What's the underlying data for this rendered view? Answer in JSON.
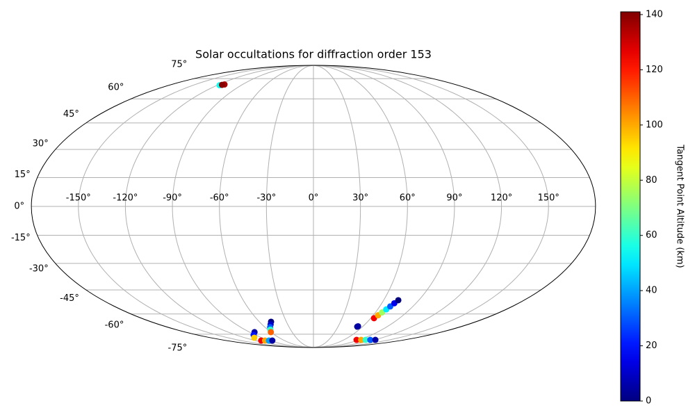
{
  "chart_data": {
    "type": "scatter",
    "projection": "mollweide",
    "title": "Solar occultations for diffraction order 153",
    "xlim": [
      -180,
      180
    ],
    "ylim": [
      -90,
      90
    ],
    "xticks": [
      {
        "value": -150,
        "label": "-150°"
      },
      {
        "value": -120,
        "label": "-120°"
      },
      {
        "value": -90,
        "label": "-90°"
      },
      {
        "value": -60,
        "label": "-60°"
      },
      {
        "value": -30,
        "label": "-30°"
      },
      {
        "value": 0,
        "label": "0°"
      },
      {
        "value": 30,
        "label": "30°"
      },
      {
        "value": 60,
        "label": "60°"
      },
      {
        "value": 90,
        "label": "90°"
      },
      {
        "value": 120,
        "label": "120°"
      },
      {
        "value": 150,
        "label": "150°"
      }
    ],
    "yticks": [
      {
        "value": -75,
        "label": "-75°"
      },
      {
        "value": -60,
        "label": "-60°"
      },
      {
        "value": -45,
        "label": "-45°"
      },
      {
        "value": -30,
        "label": "-30°"
      },
      {
        "value": -15,
        "label": "-15°"
      },
      {
        "value": 0,
        "label": "0°"
      },
      {
        "value": 15,
        "label": "15°"
      },
      {
        "value": 30,
        "label": "30°"
      },
      {
        "value": 45,
        "label": "45°"
      },
      {
        "value": 60,
        "label": "60°"
      },
      {
        "value": 75,
        "label": "75°"
      }
    ],
    "grid": true,
    "x": [
      -117,
      -113,
      -115,
      -47,
      -50,
      -53.5,
      -56.5,
      -60,
      -83,
      -93,
      -103.5,
      -108,
      -100,
      -92,
      -85,
      85,
      94,
      103,
      112,
      122,
      53.5,
      54,
      63.4,
      64.9,
      66.4,
      68,
      69.5,
      71,
      72.5
    ],
    "y": [
      69.7,
      70.3,
      70,
      -65.4,
      -67.4,
      -69.4,
      -71.3,
      -73.3,
      -73.3,
      -75.7,
      -78.1,
      -80.8,
      -80.8,
      -80.8,
      -80.8,
      -80.1,
      -80.1,
      -80.1,
      -80.1,
      -80.1,
      -69,
      -68.7,
      -62.9,
      -60.9,
      -59,
      -57,
      -55.1,
      -53.1,
      -51.2
    ],
    "color_values": [
      55,
      135,
      140,
      0,
      10,
      30,
      60,
      110,
      5,
      20,
      95,
      125,
      100,
      40,
      5,
      125,
      100,
      60,
      30,
      5,
      0,
      5,
      125,
      100,
      75,
      50,
      30,
      15,
      0
    ],
    "colormap": "jet",
    "clim": [
      0,
      141
    ],
    "cticks": [
      0,
      20,
      40,
      60,
      80,
      100,
      120,
      140
    ],
    "colorbar_label": "Tangent Point Altitude (km)"
  }
}
